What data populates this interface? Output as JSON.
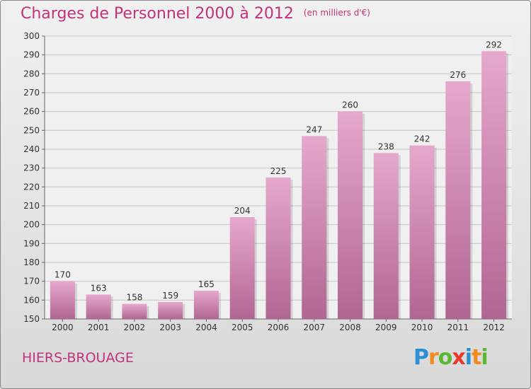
{
  "header": {
    "title": "Charges de Personnel 2000 à 2012",
    "subtitle": "(en milliers d'€)"
  },
  "footer": {
    "place": "HIERS-BROUAGE",
    "logo": [
      {
        "char": "P",
        "color": "#2a8fd4"
      },
      {
        "char": "r",
        "color": "#f28a1c"
      },
      {
        "char": "o",
        "color": "#5ab833"
      },
      {
        "char": "x",
        "color": "#e53a2c"
      },
      {
        "char": "i",
        "color": "#2a8fd4"
      },
      {
        "char": "t",
        "color": "#f28a1c"
      },
      {
        "char": "i",
        "color": "#5ab833"
      }
    ]
  },
  "chart_data": {
    "type": "bar",
    "categories": [
      "2000",
      "2001",
      "2002",
      "2003",
      "2004",
      "2005",
      "2006",
      "2007",
      "2008",
      "2009",
      "2010",
      "2011",
      "2012"
    ],
    "values": [
      170,
      163,
      158,
      159,
      165,
      204,
      225,
      247,
      260,
      238,
      242,
      276,
      292
    ],
    "ylim": [
      150,
      300
    ],
    "ytick_step": 10,
    "grid": true,
    "bar_color_top": "#e6a8cd",
    "bar_color_bottom": "#b06693"
  }
}
